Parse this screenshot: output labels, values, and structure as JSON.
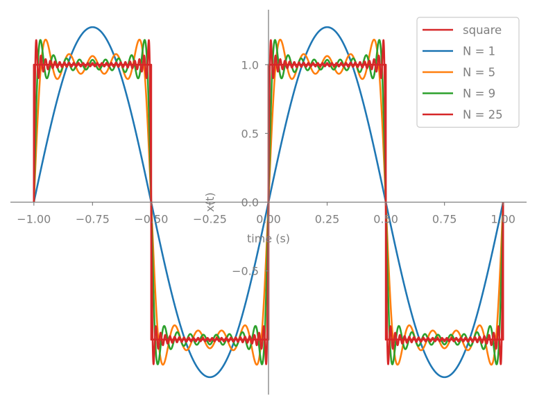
{
  "chart_data": {
    "type": "line",
    "xlabel": "time (s)",
    "ylabel": "x(t)",
    "xlim": [
      -1.1,
      1.1
    ],
    "ylim": [
      -1.4,
      1.4
    ],
    "x_ticks": [
      -1.0,
      -0.75,
      -0.5,
      -0.25,
      0.0,
      0.25,
      0.5,
      0.75,
      1.0
    ],
    "x_tick_labels": [
      "−1.00",
      "−0.75",
      "−0.50",
      "−0.25",
      "0.00",
      "0.25",
      "0.50",
      "0.75",
      "1.00"
    ],
    "y_ticks": [
      1.0,
      0.5,
      0.0,
      -0.5
    ],
    "y_tick_labels": [
      "1.0",
      "0.5",
      "0.0",
      "−0.5"
    ],
    "legend_placement": "top-right",
    "x_range": [
      -1.0,
      1.0
    ],
    "period": 1.0,
    "series": [
      {
        "name": "square",
        "kind": "square",
        "color": "#d62728"
      },
      {
        "name": "N = 1",
        "kind": "fourier",
        "harmonics": 1,
        "color": "#1f77b4"
      },
      {
        "name": "N = 5",
        "kind": "fourier",
        "harmonics": 5,
        "color": "#ff7f0e"
      },
      {
        "name": "N = 9",
        "kind": "fourier",
        "harmonics": 9,
        "color": "#2ca02c"
      },
      {
        "name": "N = 25",
        "kind": "fourier",
        "harmonics": 25,
        "color": "#d62728"
      }
    ]
  }
}
